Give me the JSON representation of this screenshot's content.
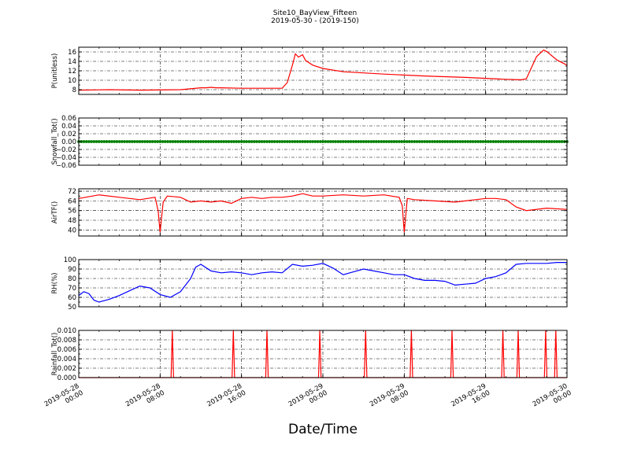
{
  "figure": {
    "title_line1": "Site10_BayView_Fifteen",
    "title_line2": "2019-05-30 - (2019-150)",
    "xlabel": "Date/Time"
  },
  "x_axis": {
    "range": [
      "2019-05-28 00:00",
      "2019-05-30 00:00"
    ],
    "ticks": [
      {
        "line1": "2019-05-28",
        "line2": "00:00"
      },
      {
        "line1": "2019-05-28",
        "line2": "08:00"
      },
      {
        "line1": "2019-05-28",
        "line2": "16:00"
      },
      {
        "line1": "2019-05-29",
        "line2": "00:00"
      },
      {
        "line1": "2019-05-29",
        "line2": "08:00"
      },
      {
        "line1": "2019-05-29",
        "line2": "16:00"
      },
      {
        "line1": "2019-05-30",
        "line2": "00:00"
      }
    ],
    "tick_hours": [
      0,
      8,
      16,
      24,
      32,
      40,
      48
    ]
  },
  "chart_data": [
    {
      "type": "line",
      "ylabel": "P(unitless)",
      "ylim": [
        7,
        17
      ],
      "yticks": [
        "8",
        "10",
        "12",
        "14",
        "16"
      ],
      "grid": true,
      "color": "#ff0000",
      "x_hours": [
        0,
        3,
        6,
        10,
        12,
        12.5,
        13,
        13.5,
        14,
        16,
        19,
        20,
        20.5,
        21,
        21.3,
        21.6,
        22,
        22.3,
        23,
        24,
        26,
        30,
        34,
        38,
        42,
        43.5,
        44,
        45,
        45.7,
        46,
        47,
        48
      ],
      "values": [
        7.9,
        8.0,
        7.9,
        8.0,
        8.4,
        8.4,
        8.5,
        8.4,
        8.4,
        8.3,
        8.3,
        8.3,
        9.5,
        13.2,
        15.6,
        14.9,
        15.4,
        14.2,
        13.2,
        12.5,
        11.8,
        11.3,
        10.9,
        10.6,
        10.2,
        10.1,
        10.3,
        15.0,
        16.4,
        16.1,
        14.3,
        13.2
      ]
    },
    {
      "type": "scatter",
      "ylabel": "Snowfall_Tot()",
      "ylim": [
        -0.06,
        0.06
      ],
      "yticks": [
        "−0.06",
        "−0.04",
        "−0.02",
        "0.00",
        "0.02",
        "0.04",
        "0.06"
      ],
      "grid": true,
      "color": "#008000",
      "x_range_hours": [
        0,
        48
      ],
      "constant_value": 0.0
    },
    {
      "type": "line",
      "ylabel": "AirTF()",
      "ylim": [
        35,
        74
      ],
      "yticks": [
        "40",
        "48",
        "56",
        "64",
        "72"
      ],
      "grid": true,
      "color": "#ff0000",
      "x_hours": [
        0,
        2,
        4,
        6,
        7.5,
        7.8,
        8,
        8.3,
        8.7,
        10,
        11,
        12,
        13,
        14,
        15,
        16,
        17,
        18,
        19,
        20,
        21,
        22,
        23,
        24,
        26,
        28,
        30,
        31.5,
        31.8,
        32,
        32.3,
        33,
        35,
        37,
        38,
        39,
        40,
        41,
        42,
        43,
        44,
        46,
        48
      ],
      "values": [
        66,
        69,
        67,
        65,
        67,
        56,
        38,
        63,
        68,
        67,
        63,
        64,
        63,
        64,
        62,
        66,
        67,
        66,
        67,
        67,
        68,
        70,
        68,
        68,
        69,
        68,
        69,
        67,
        60,
        38,
        66,
        65,
        64,
        63,
        64,
        65,
        66,
        66,
        65,
        59,
        56,
        58,
        57
      ]
    },
    {
      "type": "line",
      "ylabel": "RH(%)",
      "ylim": [
        50,
        100
      ],
      "yticks": [
        "50",
        "60",
        "70",
        "80",
        "90",
        "100"
      ],
      "grid": true,
      "color": "#0000ff",
      "x_hours": [
        0,
        0.5,
        1,
        1.5,
        2,
        3,
        4,
        5,
        6,
        7,
        8,
        9,
        10,
        11,
        11.5,
        12,
        13,
        14,
        15,
        16,
        17,
        18,
        19,
        20,
        21,
        22,
        23,
        24,
        25,
        26,
        27,
        28,
        29,
        30,
        31,
        32,
        33,
        34,
        35,
        36,
        37,
        38,
        39,
        40,
        41,
        42,
        43,
        44,
        45,
        46,
        47,
        48
      ],
      "values": [
        62,
        66,
        64,
        57,
        55,
        58,
        62,
        67,
        72,
        70,
        63,
        60,
        66,
        80,
        92,
        95,
        88,
        86,
        87,
        86,
        84,
        86,
        87,
        86,
        95,
        93,
        94,
        96,
        91,
        84,
        87,
        90,
        88,
        86,
        84,
        84,
        80,
        78,
        78,
        77,
        73,
        74,
        75,
        80,
        82,
        86,
        95,
        96,
        96,
        96,
        97,
        97
      ]
    },
    {
      "type": "line",
      "ylabel": "Rainfall_Tot()",
      "ylim": [
        0,
        0.01
      ],
      "yticks": [
        "0.000",
        "0.002",
        "0.004",
        "0.006",
        "0.008",
        "0.010"
      ],
      "grid": true,
      "color": "#ff0000",
      "spike_hours": [
        9.2,
        15.2,
        18.5,
        23.7,
        28.2,
        32.7,
        36.7,
        41.7,
        43.2,
        45.9,
        46.9
      ],
      "spike_value": 0.01,
      "baseline_value": 0.0
    }
  ]
}
